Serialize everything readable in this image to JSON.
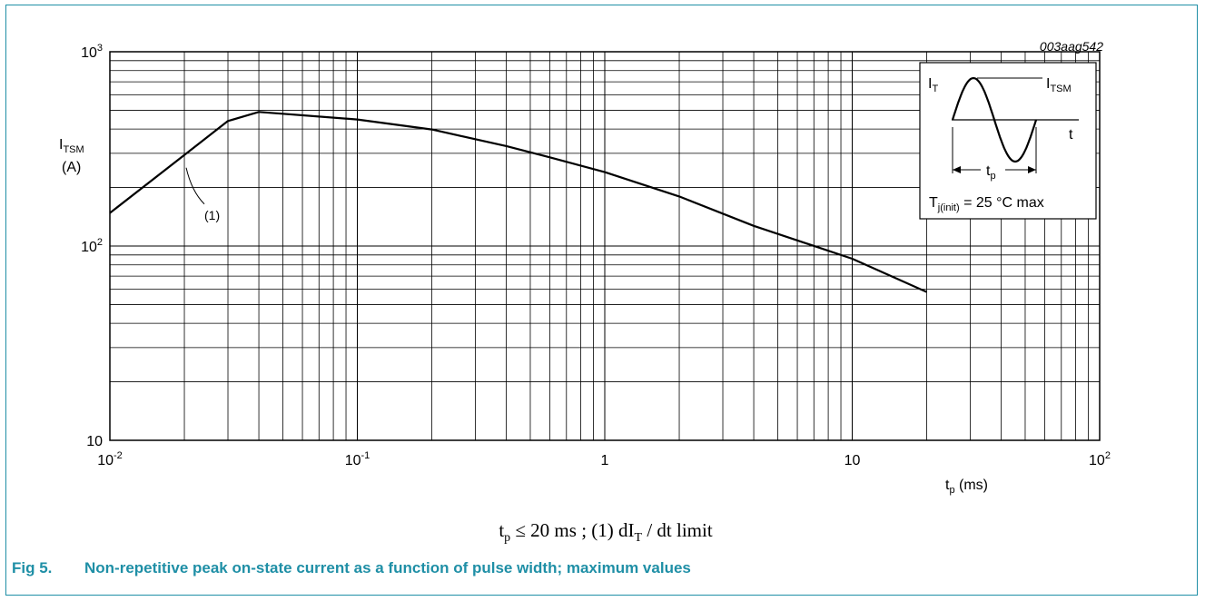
{
  "figure": {
    "code": "003aag542",
    "condition": "t_p ≤ 20 ms ; (1) dI_T / dt limit",
    "caption_number": "Fig 5.",
    "caption_text": "Non-repetitive peak on-state current as a function of pulse width; maximum values"
  },
  "colors": {
    "frame": "#1f8fa6",
    "caption": "#1f8fa6",
    "curve": "#000000",
    "grid": "#000000"
  },
  "chart_data": {
    "type": "line",
    "scale": {
      "x": "log",
      "y": "log"
    },
    "grid": true,
    "xlim": [
      0.01,
      100
    ],
    "ylim": [
      10,
      1000
    ],
    "x_ticks": [
      {
        "value": 0.01,
        "base": "10",
        "exp": "-2"
      },
      {
        "value": 0.1,
        "base": "10",
        "exp": "-1"
      },
      {
        "value": 1,
        "base": "1",
        "exp": ""
      },
      {
        "value": 10,
        "base": "10",
        "exp": ""
      },
      {
        "value": 100,
        "base": "10",
        "exp": "2"
      }
    ],
    "y_ticks": [
      {
        "value": 10,
        "base": "10",
        "exp": ""
      },
      {
        "value": 100,
        "base": "10",
        "exp": "2"
      },
      {
        "value": 1000,
        "base": "10",
        "exp": "3"
      }
    ],
    "xlabel": {
      "main": "t",
      "sub": "p",
      "rest": " (ms)"
    },
    "ylabel": {
      "main": "I",
      "sub": "TSM",
      "unit": "(A)"
    },
    "series": [
      {
        "label": "(1)",
        "x": [
          0.01,
          0.02,
          0.03,
          0.04,
          0.1,
          0.2,
          0.4,
          0.6,
          1,
          2,
          4,
          10,
          20
        ],
        "y": [
          148,
          294,
          440,
          490,
          448,
          398,
          327,
          286,
          240,
          180,
          127,
          86,
          58
        ]
      }
    ],
    "annotation": {
      "text": "(1)",
      "x": 0.02,
      "y": 294
    }
  },
  "inset": {
    "it_label": {
      "main": "I",
      "sub": "T"
    },
    "itsm_label": {
      "main": "I",
      "sub": "TSM"
    },
    "t_label": "t",
    "tp_label": {
      "main": "t",
      "sub": "p"
    },
    "temp_label": {
      "main": "T",
      "sub": "j(init)",
      "rest": " = 25 °C max"
    }
  }
}
